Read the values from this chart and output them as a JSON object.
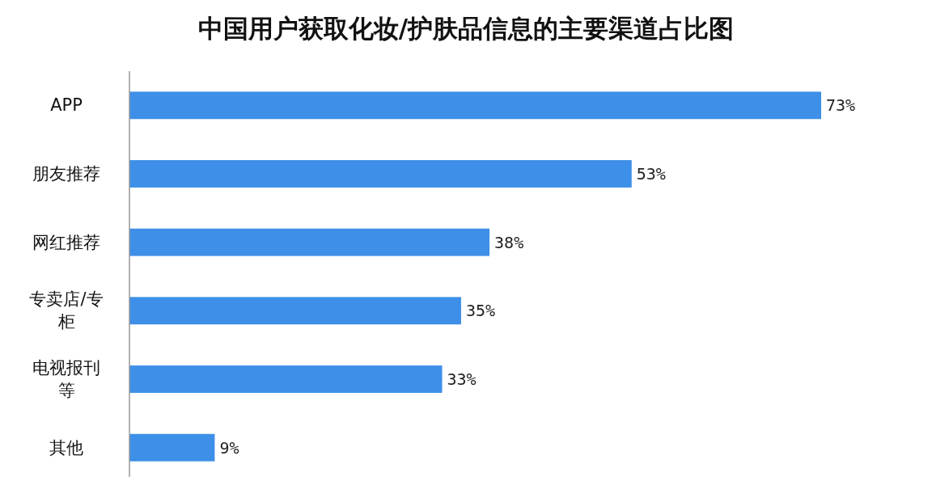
{
  "chart_data": {
    "type": "bar",
    "orientation": "horizontal",
    "title": "中国用户获取化妆/护肤品信息的主要渠道占比图",
    "categories": [
      "APP",
      "朋友推荐",
      "网红推荐",
      "专卖店/专柜",
      "电视报刊等",
      "其他"
    ],
    "values": [
      73,
      53,
      38,
      35,
      33,
      9
    ],
    "value_labels": [
      "73%",
      "53%",
      "38%",
      "35%",
      "33%",
      "9%"
    ],
    "color": "#3d8fe8"
  }
}
